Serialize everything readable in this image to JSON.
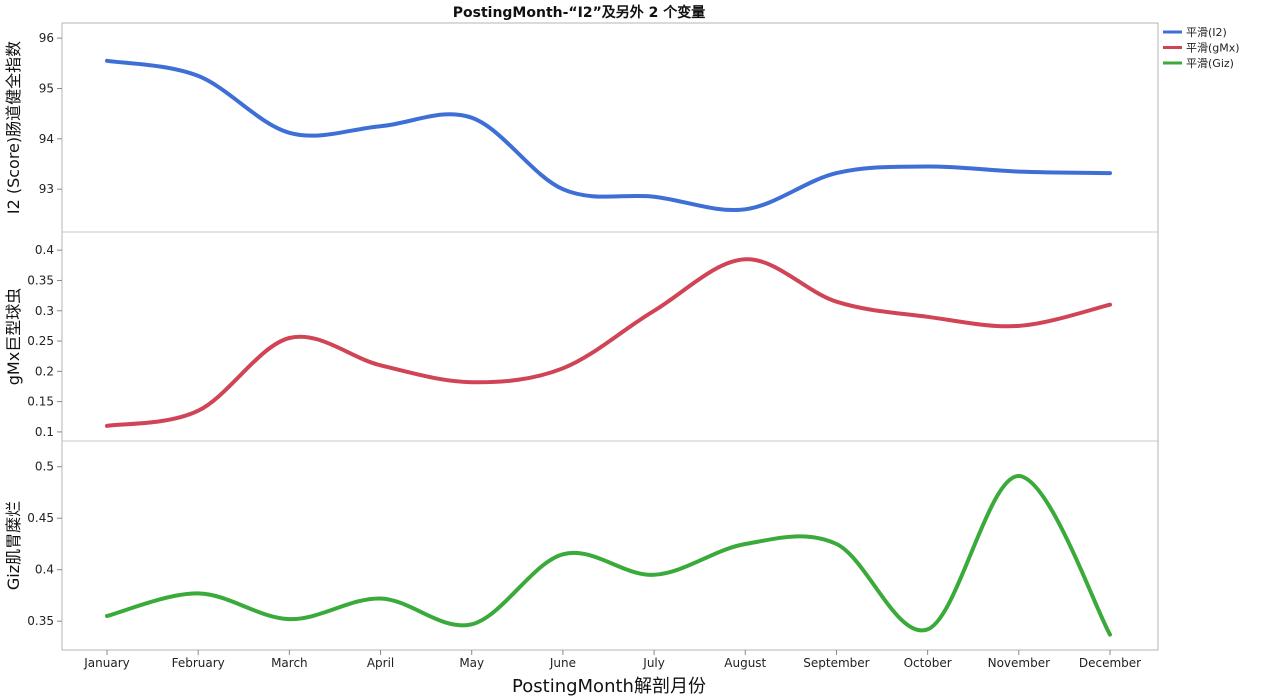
{
  "chart_data": {
    "type": "line",
    "title": "PostingMonth-“I2”及另外 2 个变量",
    "xlabel": "PostingMonth解剖月份",
    "categories": [
      "January",
      "February",
      "March",
      "April",
      "May",
      "June",
      "July",
      "August",
      "September",
      "October",
      "November",
      "December"
    ],
    "legend": {
      "placement": "top-right",
      "entries": [
        "平滑(I2)",
        "平滑(gMx)",
        "平滑(Giz)"
      ]
    },
    "panels": [
      {
        "ylabel": "I2 (Score)肠道健全指数",
        "ylim": [
          92.15,
          96.3
        ],
        "yticks": [
          93,
          94,
          95,
          96
        ],
        "ytick_labels": [
          "93",
          "94",
          "95",
          "96"
        ],
        "color": "#3d6fd6",
        "values": [
          95.55,
          95.25,
          94.12,
          94.25,
          94.42,
          93.0,
          92.85,
          92.6,
          93.32,
          93.45,
          93.35,
          93.32
        ]
      },
      {
        "ylabel": "gMx巨型球虫",
        "ylim": [
          0.085,
          0.43
        ],
        "yticks": [
          0.1,
          0.15,
          0.2,
          0.25,
          0.3,
          0.35,
          0.4
        ],
        "ytick_labels": [
          "0.1",
          "0.15",
          "0.2",
          "0.25",
          "0.3",
          "0.35",
          "0.4"
        ],
        "color": "#d04455",
        "values": [
          0.11,
          0.135,
          0.255,
          0.21,
          0.182,
          0.205,
          0.3,
          0.385,
          0.315,
          0.29,
          0.275,
          0.31
        ]
      },
      {
        "ylabel": "Giz肌胃糜烂",
        "ylim": [
          0.322,
          0.525
        ],
        "yticks": [
          0.35,
          0.4,
          0.45,
          0.5
        ],
        "ytick_labels": [
          "0.35",
          "0.4",
          "0.45",
          "0.5"
        ],
        "color": "#3aaa3a",
        "values": [
          0.355,
          0.377,
          0.352,
          0.372,
          0.347,
          0.415,
          0.395,
          0.425,
          0.425,
          0.342,
          0.491,
          0.337
        ]
      }
    ]
  }
}
